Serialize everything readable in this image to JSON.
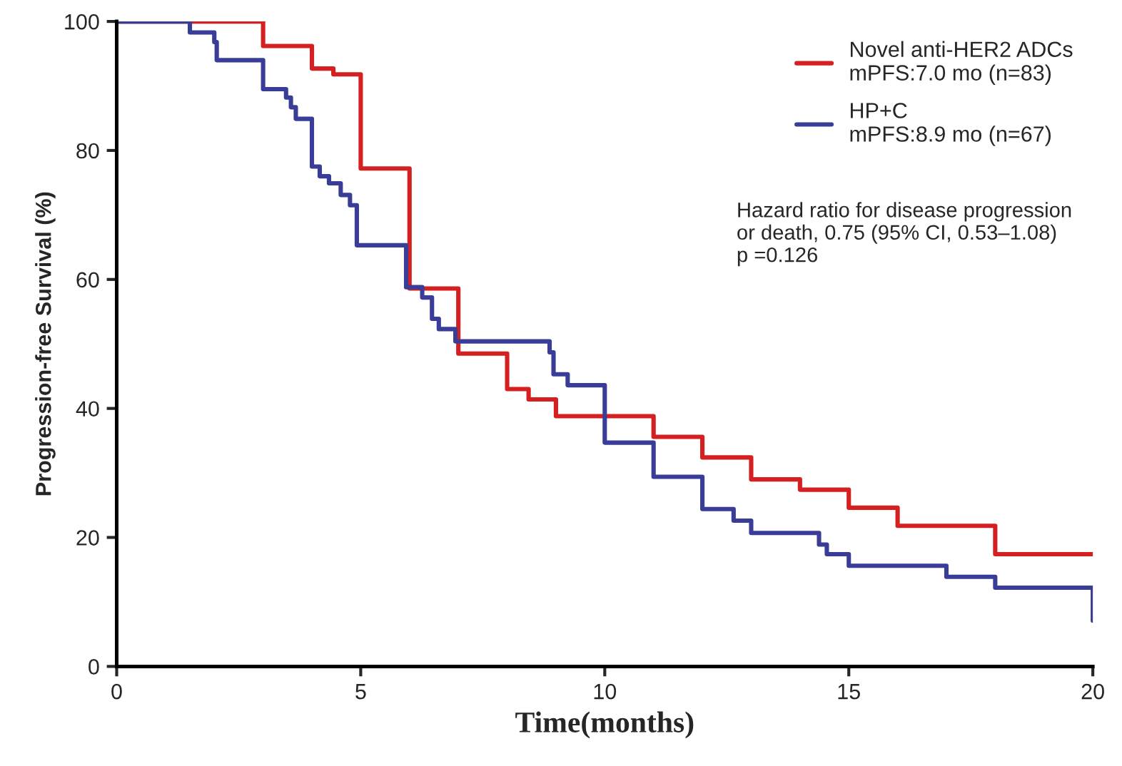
{
  "chart_data": {
    "type": "step",
    "xlabel": "Time(months)",
    "ylabel": "Progression-free Survival (%)",
    "xlim": [
      0,
      20
    ],
    "xticks": [
      0,
      5,
      10,
      15,
      20
    ],
    "ylim": [
      0,
      100
    ],
    "yticks": [
      0,
      20,
      40,
      60,
      80,
      100
    ],
    "grid": false,
    "legend": "top right",
    "marker": "none",
    "line_style": "solid",
    "series": [
      {
        "name": "Novel anti-HER2 ADCs\nmPFS:7.0 mo (n=83)",
        "color": "#d42020",
        "x": [
          0,
          3,
          4,
          4.44,
          5,
          6,
          7,
          8,
          8.44,
          9,
          11,
          12,
          13,
          14,
          15,
          16,
          18,
          20
        ],
        "values": [
          100,
          96.2,
          92.7,
          91.8,
          77.2,
          58.6,
          48.5,
          43.0,
          41.4,
          38.8,
          35.6,
          32.4,
          29.0,
          27.4,
          24.6,
          21.8,
          17.4,
          17.4
        ]
      },
      {
        "name": "HP+C\nmPFS:8.9 mo (n=67)",
        "color": "#3a3d98",
        "x": [
          0,
          1.5,
          2,
          2.05,
          3,
          3.47,
          3.57,
          3.67,
          4,
          4.16,
          4.35,
          4.59,
          4.78,
          4.92,
          5.93,
          6.26,
          6.46,
          6.6,
          6.94,
          8.87,
          8.95,
          9.24,
          10,
          11,
          12,
          12.64,
          13,
          14.39,
          14.55,
          15,
          17,
          18,
          20
        ],
        "values": [
          100,
          98.3,
          96.8,
          94.0,
          89.5,
          88.2,
          86.7,
          84.9,
          77.5,
          76.0,
          74.9,
          73.1,
          71.5,
          65.3,
          58.8,
          57.2,
          53.9,
          52.3,
          50.4,
          48.7,
          45.3,
          43.6,
          34.7,
          29.4,
          24.4,
          22.6,
          20.7,
          18.9,
          17.4,
          15.6,
          13.9,
          12.2,
          7.1
        ]
      }
    ],
    "annotations": [
      "Hazard ratio for disease progression\nor death, 0.75 (95% CI, 0.53–1.08)\np =0.126"
    ]
  }
}
